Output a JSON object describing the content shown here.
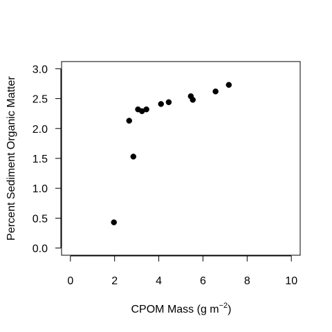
{
  "chart_data": {
    "type": "scatter",
    "title": "",
    "xlabel": "CPOM Mass (g m",
    "xlabel_superscript": "−2",
    "xlabel_suffix": ")",
    "ylabel": "Percent Sediment Organic Matter",
    "xlim": [
      -0.4,
      10.4
    ],
    "ylim": [
      -0.12,
      3.12
    ],
    "x_ticks": [
      0,
      2,
      4,
      6,
      8,
      10
    ],
    "x_tick_labels": [
      "0",
      "2",
      "4",
      "6",
      "8",
      "10"
    ],
    "y_ticks": [
      0.0,
      0.5,
      1.0,
      1.5,
      2.0,
      2.5,
      3.0
    ],
    "y_tick_labels": [
      "0.0",
      "0.5",
      "1.0",
      "1.5",
      "2.0",
      "2.5",
      "3.0"
    ],
    "grid": false,
    "legend": "none",
    "point_color": "#000000",
    "series": [
      {
        "points": [
          {
            "x": 1.97,
            "y": 0.43
          },
          {
            "x": 2.66,
            "y": 2.13
          },
          {
            "x": 2.85,
            "y": 1.53
          },
          {
            "x": 3.06,
            "y": 2.32
          },
          {
            "x": 3.24,
            "y": 2.29
          },
          {
            "x": 3.44,
            "y": 2.32
          },
          {
            "x": 4.1,
            "y": 2.41
          },
          {
            "x": 4.45,
            "y": 2.44
          },
          {
            "x": 5.45,
            "y": 2.54
          },
          {
            "x": 5.54,
            "y": 2.48
          },
          {
            "x": 6.57,
            "y": 2.62
          },
          {
            "x": 7.17,
            "y": 2.73
          }
        ]
      }
    ]
  }
}
